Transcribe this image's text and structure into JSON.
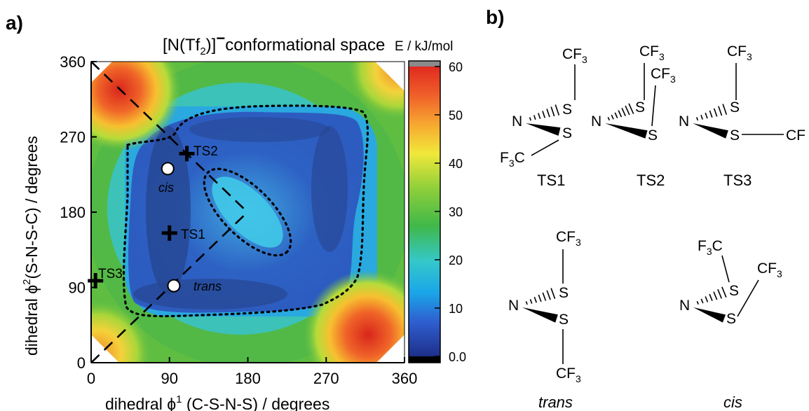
{
  "panel_a": {
    "label": "a)",
    "title_prefix": "[N(Tf",
    "title_sub": "2",
    "title_close": ")]",
    "title_charge": "−",
    "title_rest": "conformational space",
    "colorbar_title": "E / kJ/mol",
    "x_label_prefix": "dihedral ϕ",
    "x_label_sup": "1",
    "x_label_suffix": " (C-S-N-S) / degrees",
    "y_label_prefix": "dihedral ϕ",
    "y_label_sup": "2",
    "y_label_suffix": "(S-N-S-C) / degrees",
    "x_ticks": [
      "0",
      "90",
      "180",
      "270",
      "360"
    ],
    "y_ticks": [
      "0",
      "90",
      "180",
      "270",
      "360"
    ],
    "colorbar_ticks": [
      "0.0",
      "10",
      "20",
      "30",
      "40",
      "50",
      "60"
    ],
    "point_labels": {
      "ts1": "TS1",
      "ts2": "TS2",
      "ts3": "TS3",
      "cis": "cis",
      "trans": "trans"
    }
  },
  "panel_b": {
    "label": "b)",
    "cf3": "CF",
    "cf3_sub": "3",
    "f3c_f": "F",
    "f3c_c": "C",
    "n": "N",
    "s": "S",
    "captions": {
      "ts1": "TS1",
      "ts2": "TS2",
      "ts3": "TS3",
      "trans": "trans",
      "cis": "cis"
    }
  },
  "colors": {
    "ts_marker": "#000000",
    "min_marker_fill": "#ffffff",
    "colorbar_top_gray": "#8a8a8a",
    "colorbar_bottom_black": "#000000"
  },
  "chart_data": {
    "type": "heatmap",
    "title": "[N(Tf2)]− conformational space",
    "xlabel": "dihedral ϕ1 (C-S-N-S) / degrees",
    "ylabel": "dihedral ϕ2(S-N-S-C) / degrees",
    "xlim": [
      0,
      360
    ],
    "ylim": [
      0,
      360
    ],
    "x_ticks": [
      0,
      90,
      180,
      270,
      360
    ],
    "y_ticks": [
      0,
      90,
      180,
      270,
      360
    ],
    "colorbar": {
      "label": "E / kJ/mol",
      "min": 0,
      "max": 60,
      "ticks": [
        0,
        10,
        20,
        30,
        40,
        50,
        60
      ]
    },
    "points": [
      {
        "label": "TS1",
        "x": 90,
        "y": 155,
        "marker": "cross"
      },
      {
        "label": "TS2",
        "x": 110,
        "y": 250,
        "marker": "cross"
      },
      {
        "label": "TS3",
        "x": 5,
        "y": 98,
        "marker": "cross"
      },
      {
        "label": "cis",
        "x": 88,
        "y": 232,
        "marker": "circle"
      },
      {
        "label": "trans",
        "x": 95,
        "y": 92,
        "marker": "circle"
      }
    ],
    "diagonal_lines": [
      {
        "from": [
          0,
          0
        ],
        "to": [
          180,
          180
        ]
      },
      {
        "from": [
          0,
          360
        ],
        "to": [
          180,
          180
        ]
      }
    ],
    "regions": [
      {
        "name": "high-energy corner",
        "center": [
          40,
          320
        ],
        "energy": 60
      },
      {
        "name": "high-energy corner",
        "center": [
          315,
          40
        ],
        "energy": 60
      },
      {
        "name": "high-energy corner",
        "center": [
          10,
          20
        ],
        "energy": 55
      },
      {
        "name": "high-energy corner",
        "center": [
          355,
          345
        ],
        "energy": 55
      },
      {
        "name": "low-energy basin",
        "center": [
          180,
          180
        ],
        "energy": 5
      }
    ]
  }
}
